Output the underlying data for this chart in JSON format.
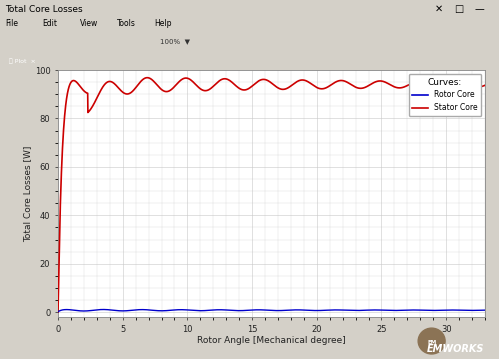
{
  "title_bar_text": "Total Core Losses",
  "xlabel": "Rotor Angle [Mechanical degree]",
  "ylabel": "Total Core Losses [W]",
  "xlim": [
    0,
    33
  ],
  "ylim": [
    -2,
    100
  ],
  "xticks": [
    0,
    5,
    10,
    15,
    20,
    25,
    30
  ],
  "yticks": [
    0,
    20,
    40,
    60,
    80,
    100
  ],
  "stator_color": "#cc0000",
  "rotor_color": "#0000cc",
  "plot_bg_color": "#ffffff",
  "window_bg_color": "#d4d0c8",
  "dark_panel_color": "#2b3a52",
  "grid_color": "#c8c8c8",
  "legend_title": "Curves:",
  "legend_rotor": "Rotor Core",
  "legend_stator": "Stator Core",
  "figsize": [
    4.99,
    3.59
  ],
  "dpi": 100,
  "stator_peak_x": 2.3,
  "stator_peak_y": 94,
  "stator_settle": 86,
  "stator_osc_amp": 4.0,
  "stator_osc_period": 3.0,
  "rotor_settle": 0.8,
  "rotor_osc_amp": 0.35
}
